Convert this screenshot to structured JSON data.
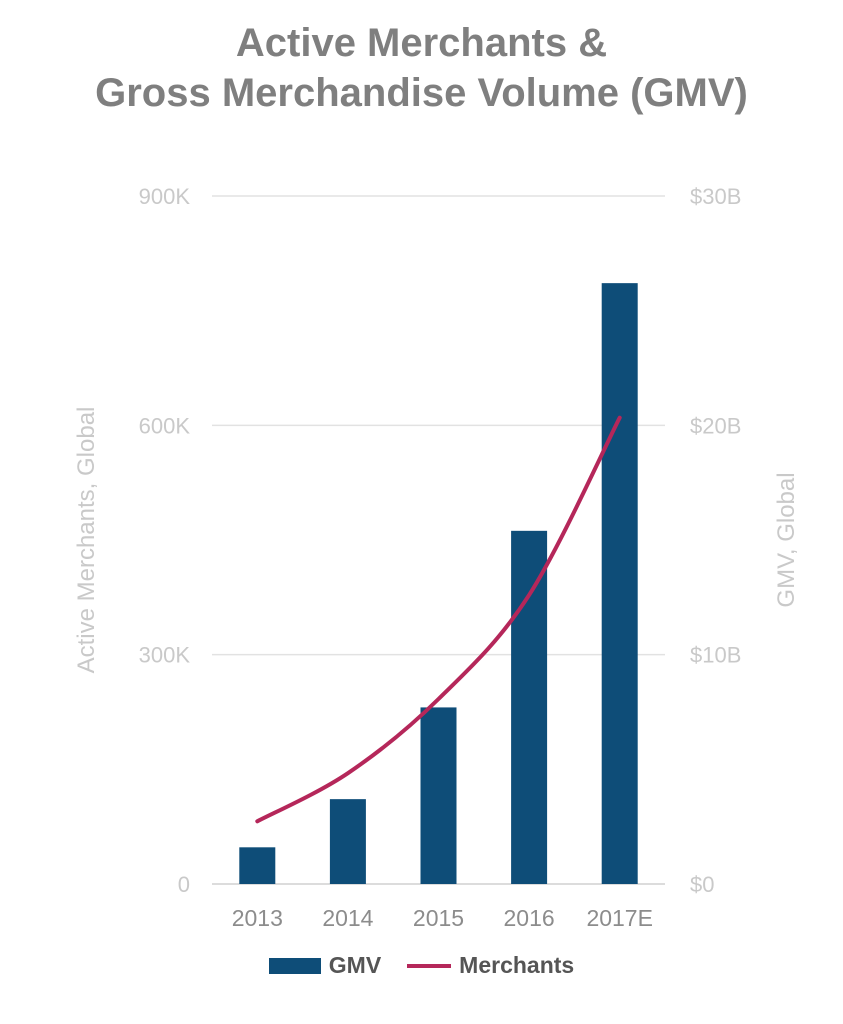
{
  "chart_data": {
    "type": "bar+line",
    "title_lines": [
      "Active Merchants &",
      "Gross Merchandise Volume (GMV)"
    ],
    "categories": [
      "2013",
      "2014",
      "2015",
      "2016",
      "2017E"
    ],
    "series": [
      {
        "name": "GMV",
        "type": "bar",
        "axis": "right",
        "values": [
          1.6,
          3.7,
          7.7,
          15.4,
          26.2
        ],
        "color": "#0e4d78"
      },
      {
        "name": "Merchants",
        "type": "line",
        "axis": "left",
        "values": [
          82000,
          145000,
          242000,
          378000,
          610000
        ],
        "color": "#b5275a"
      }
    ],
    "left_axis": {
      "label": "Active Merchants, Global",
      "range": [
        0,
        900000
      ],
      "ticks": [
        0,
        300000,
        600000,
        900000
      ],
      "tick_labels": [
        "0",
        "300K",
        "600K",
        "900K"
      ]
    },
    "right_axis": {
      "label": "GMV, Global",
      "range": [
        0,
        30
      ],
      "ticks": [
        0,
        10,
        20,
        30
      ],
      "tick_labels": [
        "$0",
        "$10B",
        "$20B",
        "$30B"
      ]
    },
    "grid": true,
    "legend_position": "bottom"
  }
}
